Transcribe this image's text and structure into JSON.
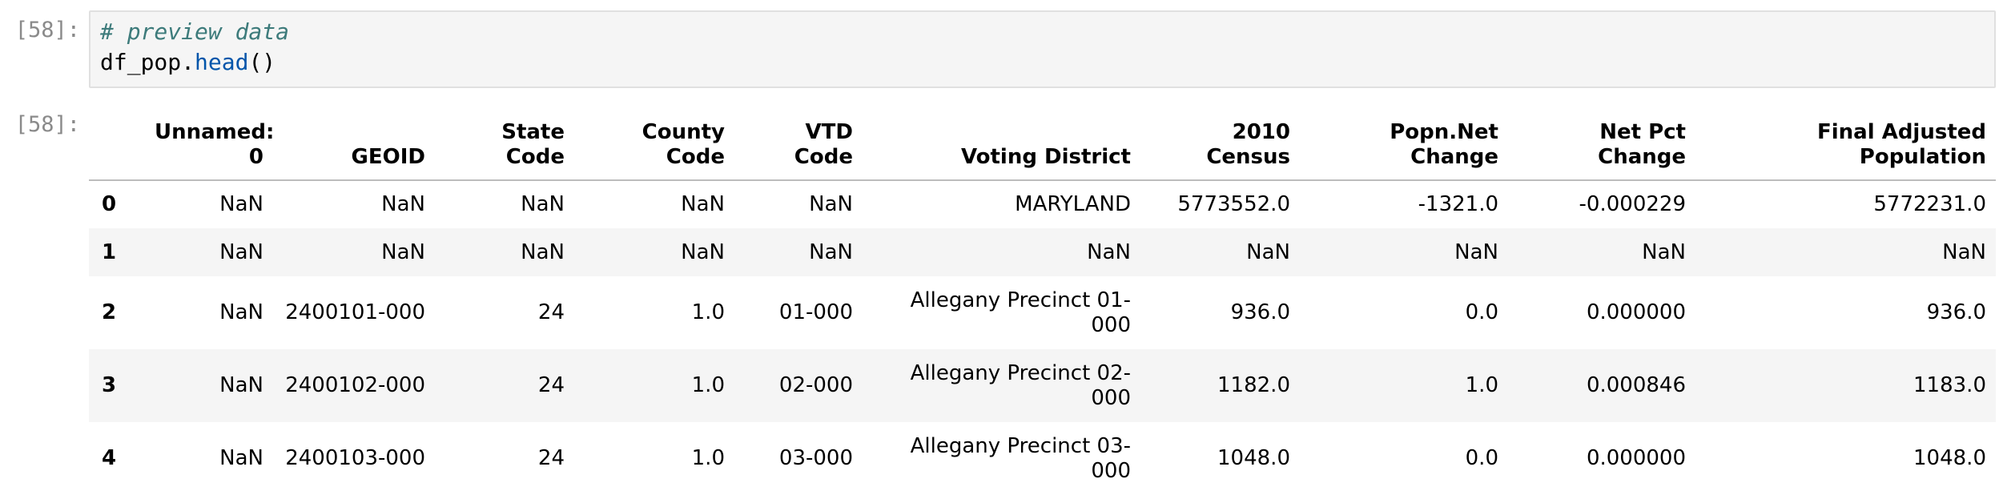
{
  "cell": {
    "in_prompt": "[58]:",
    "out_prompt": "[58]:",
    "code": {
      "comment": "# preview data",
      "line2_obj": "df_pop.",
      "line2_fn": "head",
      "line2_parens": "()"
    }
  },
  "table": {
    "columns": [
      "",
      "Unnamed: 0",
      "GEOID",
      "State Code",
      "County Code",
      "VTD Code",
      "Voting District",
      "2010 Census",
      "Popn.Net Change",
      "Net Pct Change",
      "Final Adjusted Population"
    ],
    "rows": [
      [
        "0",
        "NaN",
        "NaN",
        "NaN",
        "NaN",
        "NaN",
        "MARYLAND",
        "5773552.0",
        "-1321.0",
        "-0.000229",
        "5772231.0"
      ],
      [
        "1",
        "NaN",
        "NaN",
        "NaN",
        "NaN",
        "NaN",
        "NaN",
        "NaN",
        "NaN",
        "NaN",
        "NaN"
      ],
      [
        "2",
        "NaN",
        "2400101-000",
        "24",
        "1.0",
        "01-000",
        "Allegany Precinct 01-000",
        "936.0",
        "0.0",
        "0.000000",
        "936.0"
      ],
      [
        "3",
        "NaN",
        "2400102-000",
        "24",
        "1.0",
        "02-000",
        "Allegany Precinct 02-000",
        "1182.0",
        "1.0",
        "0.000846",
        "1183.0"
      ],
      [
        "4",
        "NaN",
        "2400103-000",
        "24",
        "1.0",
        "03-000",
        "Allegany Precinct 03-000",
        "1048.0",
        "0.0",
        "0.000000",
        "1048.0"
      ]
    ]
  }
}
